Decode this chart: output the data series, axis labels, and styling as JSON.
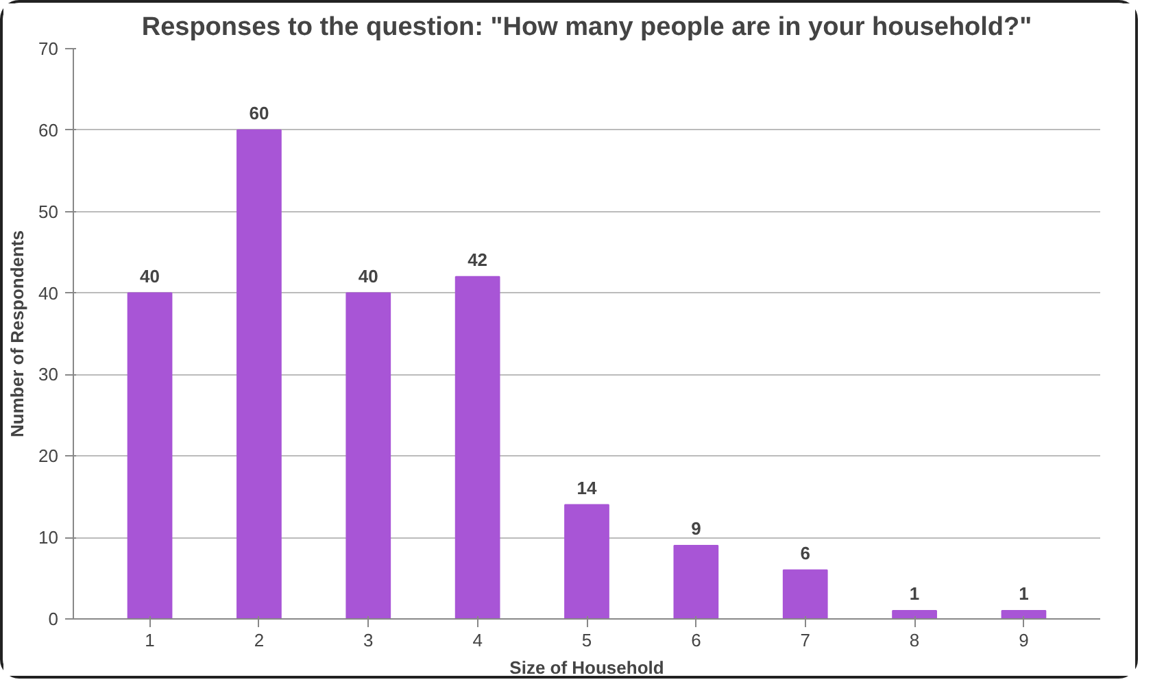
{
  "chart_data": {
    "type": "bar",
    "title": "Responses to the question: \"How many people are in your household?\"",
    "xlabel": "Size of Household",
    "ylabel": "Number of Respondents",
    "categories": [
      "1",
      "2",
      "3",
      "4",
      "5",
      "6",
      "7",
      "8",
      "9"
    ],
    "values": [
      40,
      60,
      40,
      42,
      14,
      9,
      6,
      1,
      1
    ],
    "color": "#a855d6",
    "ylim": [
      0,
      70
    ],
    "yticks": [
      0,
      10,
      20,
      30,
      40,
      50,
      60,
      70
    ],
    "grid": "y",
    "data_labels": true
  }
}
